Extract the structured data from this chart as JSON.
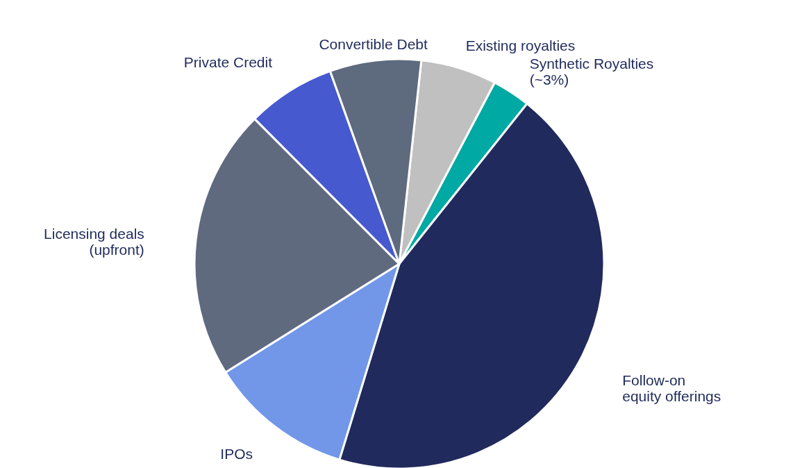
{
  "chart_data": {
    "type": "pie",
    "categories": [
      "Existing royalties",
      "Synthetic Royalties\n(~3%)",
      "Follow-on\nequity offerings",
      "IPOs",
      "Licensing deals\n(upfront)",
      "Private Credit",
      "Convertible Debt"
    ],
    "values": [
      6,
      3,
      44,
      11.4,
      21.4,
      7,
      7.2
    ],
    "colors": [
      "#c0c0c0",
      "#00a9a3",
      "#212a5c",
      "#7297e8",
      "#5f6a7f",
      "#4759cf",
      "#5e6a7e"
    ]
  }
}
